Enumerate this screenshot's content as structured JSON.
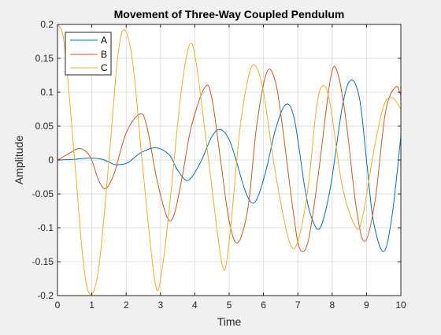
{
  "chart_data": {
    "type": "line",
    "title": "Movement of Three-Way Coupled Pendulum",
    "xlabel": "Time",
    "ylabel": "Amplitude",
    "xlim": [
      0,
      10
    ],
    "ylim": [
      -0.2,
      0.2
    ],
    "xticks": [
      0,
      1,
      2,
      3,
      4,
      5,
      6,
      7,
      8,
      9,
      10
    ],
    "yticks": [
      -0.2,
      -0.15,
      -0.1,
      -0.05,
      0,
      0.05,
      0.1,
      0.15,
      0.2
    ],
    "xtick_labels": [
      "0",
      "1",
      "2",
      "3",
      "4",
      "5",
      "6",
      "7",
      "8",
      "9",
      "10"
    ],
    "ytick_labels": [
      "-0.2",
      "-0.15",
      "-0.1",
      "-0.05",
      "0",
      "0.05",
      "0.1",
      "0.15",
      "0.2"
    ],
    "grid": true,
    "legend_position": "top-left",
    "series": [
      {
        "name": "A",
        "color": "#0072BD",
        "x": [
          0,
          0.5,
          0.95,
          1.3,
          1.5,
          1.7,
          2.05,
          2.4,
          2.85,
          3.25,
          3.5,
          3.8,
          4.15,
          4.5,
          4.75,
          5.0,
          5.2,
          5.5,
          5.75,
          6.05,
          6.35,
          6.65,
          6.9,
          7.2,
          7.4,
          7.65,
          7.95,
          8.3,
          8.55,
          8.8,
          9.0,
          9.2,
          9.5,
          9.75,
          10.0
        ],
        "y": [
          0,
          0.001,
          0.003,
          0.001,
          -0.003,
          -0.007,
          -0.004,
          0.01,
          0.018,
          0.008,
          -0.015,
          -0.03,
          -0.005,
          0.035,
          0.045,
          0.03,
          0.0,
          -0.05,
          -0.062,
          -0.02,
          0.045,
          0.082,
          0.06,
          -0.04,
          -0.085,
          -0.1,
          -0.04,
          0.08,
          0.118,
          0.09,
          0.0,
          -0.09,
          -0.135,
          -0.08,
          0.035
        ]
      },
      {
        "name": "B",
        "color": "#D95319",
        "x": [
          0,
          0.35,
          0.65,
          0.95,
          1.2,
          1.4,
          1.65,
          2.0,
          2.4,
          2.6,
          2.9,
          3.2,
          3.4,
          3.65,
          3.9,
          4.3,
          4.5,
          4.75,
          5.0,
          5.25,
          5.55,
          5.8,
          6.1,
          6.35,
          6.55,
          6.85,
          7.05,
          7.3,
          7.6,
          7.95,
          8.15,
          8.4,
          8.7,
          8.95,
          9.25,
          9.55,
          9.85,
          10.0
        ],
        "y": [
          0,
          0.01,
          0.017,
          0.005,
          -0.03,
          -0.042,
          -0.02,
          0.04,
          0.068,
          0.05,
          -0.03,
          -0.085,
          -0.08,
          -0.02,
          0.05,
          0.108,
          0.09,
          0.0,
          -0.09,
          -0.122,
          -0.07,
          0.05,
          0.13,
          0.115,
          0.05,
          -0.07,
          -0.13,
          -0.12,
          -0.02,
          0.12,
          0.13,
          0.06,
          -0.07,
          -0.12,
          -0.06,
          0.07,
          0.108,
          0.095
        ]
      },
      {
        "name": "C",
        "color": "#EDB120",
        "x": [
          0,
          0.2,
          0.5,
          0.75,
          0.95,
          1.2,
          1.5,
          1.75,
          1.95,
          2.2,
          2.5,
          2.85,
          3.05,
          3.3,
          3.6,
          3.85,
          4.05,
          4.4,
          4.8,
          5.0,
          5.3,
          5.55,
          5.75,
          6.0,
          6.35,
          6.75,
          7.0,
          7.3,
          7.55,
          7.75,
          7.95,
          8.3,
          8.7,
          8.9,
          9.2,
          9.5,
          9.75,
          10.0
        ],
        "y": [
          0.2,
          0.17,
          0.0,
          -0.15,
          -0.198,
          -0.16,
          0.0,
          0.15,
          0.192,
          0.14,
          -0.02,
          -0.183,
          -0.16,
          -0.05,
          0.1,
          0.17,
          0.14,
          0.0,
          -0.155,
          -0.12,
          0.04,
          0.12,
          0.14,
          0.1,
          -0.02,
          -0.12,
          -0.12,
          -0.04,
          0.08,
          0.11,
          0.08,
          -0.04,
          -0.1,
          -0.08,
          0.01,
          0.08,
          0.092,
          0.075
        ]
      }
    ]
  }
}
